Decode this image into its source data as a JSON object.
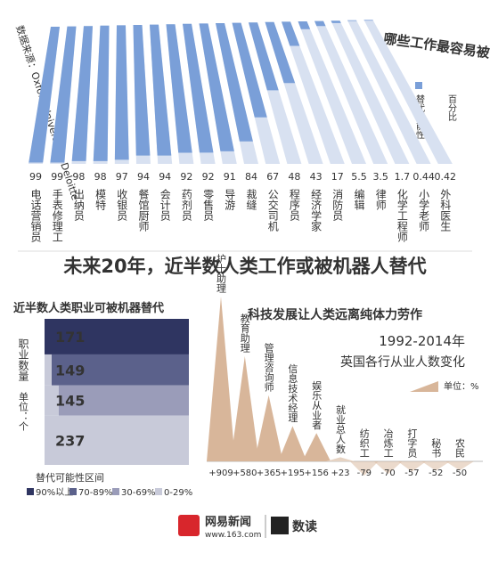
{
  "source": "数据来源：Oxford University、Deloitte",
  "headline": "未来20年，近半数人类工作或被机器人替代",
  "chart_data": [
    {
      "type": "bar",
      "title": "哪些工作最容易被自动化?",
      "legend": "替代可能性",
      "unit": "百分比",
      "categories": [
        "电话营销员",
        "手表修理工",
        "出纳员",
        "模特",
        "收银员",
        "餐馆厨师",
        "会计员",
        "药剂员",
        "零售员",
        "导游",
        "裁缝",
        "公交司机",
        "程序员",
        "经济学家",
        "消防员",
        "编辑",
        "律师",
        "化学工程师",
        "小学老师",
        "外科医生"
      ],
      "values": [
        99,
        99,
        98,
        98,
        97,
        94,
        94,
        92,
        92,
        91,
        84,
        67,
        48,
        43,
        17,
        5.5,
        3.5,
        1.7,
        0.44,
        0.42
      ],
      "color": "#7a9fd8",
      "track_color": "#d8e1f1"
    },
    {
      "type": "stacked",
      "title": "近半数人类职业可被机器替代",
      "ylabel": "职业数量",
      "unit": "单位：个",
      "legend_title": "替代可能性区间",
      "series": [
        {
          "name": "90%以上",
          "color": "#2f3561",
          "values": [
            171
          ]
        },
        {
          "name": "70-89%",
          "color": "#5b618b",
          "values": [
            149
          ]
        },
        {
          "name": "30-69%",
          "color": "#9a9cb9",
          "values": [
            145
          ]
        },
        {
          "name": "0-29%",
          "color": "#c8cad9",
          "values": [
            237
          ]
        }
      ]
    },
    {
      "type": "triangle",
      "title": "科技发展让人类远离纯体力劳作",
      "subtitle": "1992-2014年",
      "subtitle2": "英国各行从业人数变化",
      "unit": "单位：%",
      "categories": [
        "护士助理",
        "教育助理",
        "管理咨询师",
        "信息技术经理",
        "娱乐从业者",
        "就业总人数",
        "纺织工",
        "冶炼工",
        "打字员",
        "秘书",
        "农民"
      ],
      "values": [
        909,
        580,
        365,
        195,
        156,
        23,
        -79,
        -70,
        -57,
        -52,
        -50
      ],
      "value_labels": [
        "+909",
        "+580",
        "+365",
        "+195",
        "+156",
        "+23",
        "-79",
        "-70",
        "-57",
        "-52",
        "-50"
      ],
      "colors": [
        "#d8b69a",
        "#d8b69a",
        "#d8b69a",
        "#d8b69a",
        "#d8b69a",
        "#e6d3c3",
        "#d8b69a",
        "#d8b69a",
        "#d8b69a",
        "#d8b69a",
        "#d8b69a"
      ]
    }
  ],
  "footer": {
    "brand": "网易新闻",
    "url": "www.163.com",
    "product": "数读"
  }
}
